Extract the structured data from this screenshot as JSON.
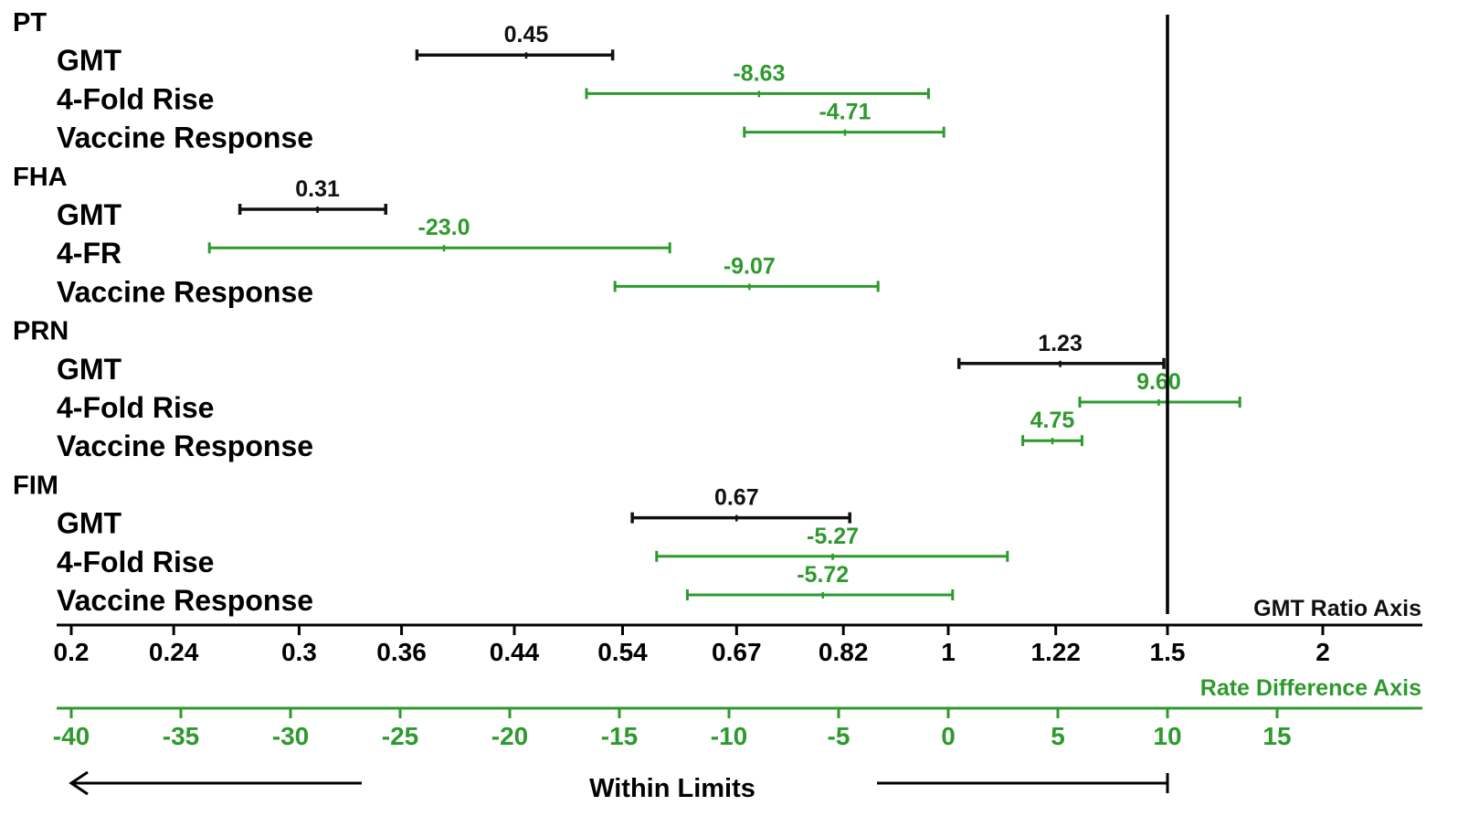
{
  "chart_data": {
    "type": "forest",
    "groups": [
      {
        "name": "PT",
        "rows": [
          {
            "label": "GMT",
            "axis": "gmt",
            "point": 0.45,
            "ci": [
              0.37,
              0.53
            ],
            "value_label": "0.45"
          },
          {
            "label": "4-Fold Rise",
            "axis": "rate",
            "point": -8.63,
            "ci": [
              -16.5,
              -0.9
            ],
            "value_label": "-8.63"
          },
          {
            "label": "Vaccine Response",
            "axis": "rate",
            "point": -4.71,
            "ci": [
              -9.3,
              -0.2
            ],
            "value_label": "-4.71"
          }
        ]
      },
      {
        "name": "FHA",
        "rows": [
          {
            "label": "GMT",
            "axis": "gmt",
            "point": 0.31,
            "ci": [
              0.27,
              0.35
            ],
            "value_label": "0.31"
          },
          {
            "label": "4-FR",
            "axis": "rate",
            "point": -23.0,
            "ci": [
              -33.7,
              -12.7
            ],
            "value_label": "-23.0"
          },
          {
            "label": "Vaccine Response",
            "axis": "rate",
            "point": -9.07,
            "ci": [
              -15.2,
              -3.2
            ],
            "value_label": "-9.07"
          }
        ]
      },
      {
        "name": "PRN",
        "rows": [
          {
            "label": "GMT",
            "axis": "gmt",
            "point": 1.23,
            "ci": [
              1.02,
              1.49
            ],
            "value_label": "1.23"
          },
          {
            "label": "4-Fold Rise",
            "axis": "rate",
            "point": 9.6,
            "ci": [
              6.0,
              13.3
            ],
            "value_label": "9.60"
          },
          {
            "label": "Vaccine Response",
            "axis": "rate",
            "point": 4.75,
            "ci": [
              3.4,
              6.1
            ],
            "value_label": "4.75"
          }
        ]
      },
      {
        "name": "FIM",
        "rows": [
          {
            "label": "GMT",
            "axis": "gmt",
            "point": 0.67,
            "ci": [
              0.55,
              0.83
            ],
            "value_label": "0.67"
          },
          {
            "label": "4-Fold Rise",
            "axis": "rate",
            "point": -5.27,
            "ci": [
              -13.3,
              2.7
            ],
            "value_label": "-5.27"
          },
          {
            "label": "Vaccine Response",
            "axis": "rate",
            "point": -5.72,
            "ci": [
              -11.9,
              0.2
            ],
            "value_label": "-5.72"
          }
        ]
      }
    ],
    "reference_line": {
      "gmt": 1.5,
      "rate": 10
    },
    "gmt_axis": {
      "title": "GMT Ratio Axis",
      "scale": "log",
      "ticks": [
        0.2,
        0.24,
        0.3,
        0.36,
        0.44,
        0.54,
        0.67,
        0.82,
        1,
        1.22,
        1.5,
        2
      ],
      "tick_labels": [
        "0.2",
        "0.24",
        "0.3",
        "0.36",
        "0.44",
        "0.54",
        "0.67",
        "0.82",
        "1",
        "1.22",
        "1.5",
        "2"
      ]
    },
    "rate_axis": {
      "title": "Rate Difference Axis",
      "scale": "linear",
      "ticks": [
        -40,
        -35,
        -30,
        -25,
        -20,
        -15,
        -10,
        -5,
        0,
        5,
        10,
        15
      ],
      "tick_labels": [
        "-40",
        "-35",
        "-30",
        "-25",
        "-20",
        "-15",
        "-10",
        "-5",
        "0",
        "5",
        "10",
        "15"
      ]
    },
    "within_limits_label": "Within Limits"
  },
  "colors": {
    "gmt": "#111111",
    "rate": "#2e9a2e",
    "axis": "#000000"
  }
}
